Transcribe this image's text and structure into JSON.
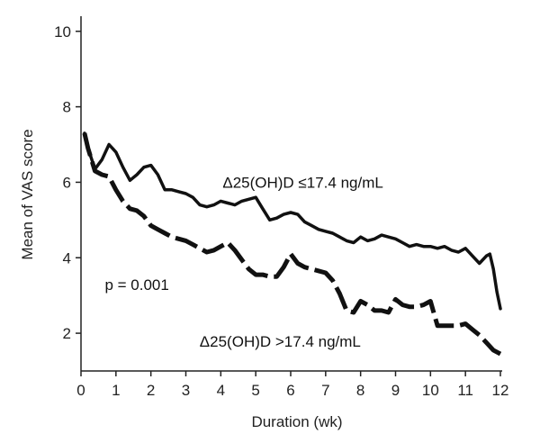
{
  "chart_data": {
    "type": "line",
    "title": "",
    "xlabel": "Duration (wk)",
    "ylabel": "Mean of VAS score",
    "xlim": [
      0,
      12
    ],
    "ylim": [
      1,
      10.4
    ],
    "x_ticks": [
      0,
      1,
      2,
      3,
      4,
      5,
      6,
      7,
      8,
      9,
      10,
      11,
      12
    ],
    "y_ticks": [
      2,
      4,
      6,
      8,
      10
    ],
    "grid": false,
    "colors": {
      "axis": "#222222",
      "line": "#111111"
    },
    "series": [
      {
        "name": "Δ25(OH)D ≤17.4 ng/mL",
        "style": "solid",
        "points": [
          [
            0.1,
            7.3
          ],
          [
            0.2,
            6.9
          ],
          [
            0.4,
            6.35
          ],
          [
            0.6,
            6.6
          ],
          [
            0.8,
            7.0
          ],
          [
            1.0,
            6.8
          ],
          [
            1.2,
            6.4
          ],
          [
            1.4,
            6.05
          ],
          [
            1.6,
            6.2
          ],
          [
            1.8,
            6.4
          ],
          [
            2.0,
            6.45
          ],
          [
            2.2,
            6.2
          ],
          [
            2.4,
            5.8
          ],
          [
            2.6,
            5.8
          ],
          [
            2.8,
            5.75
          ],
          [
            3.0,
            5.7
          ],
          [
            3.2,
            5.6
          ],
          [
            3.4,
            5.4
          ],
          [
            3.6,
            5.35
          ],
          [
            3.8,
            5.4
          ],
          [
            4.0,
            5.5
          ],
          [
            4.2,
            5.45
          ],
          [
            4.4,
            5.4
          ],
          [
            4.6,
            5.5
          ],
          [
            4.8,
            5.55
          ],
          [
            5.0,
            5.6
          ],
          [
            5.2,
            5.3
          ],
          [
            5.4,
            5.0
          ],
          [
            5.6,
            5.05
          ],
          [
            5.8,
            5.15
          ],
          [
            6.0,
            5.2
          ],
          [
            6.2,
            5.15
          ],
          [
            6.4,
            4.95
          ],
          [
            6.6,
            4.85
          ],
          [
            6.8,
            4.75
          ],
          [
            7.0,
            4.7
          ],
          [
            7.2,
            4.65
          ],
          [
            7.4,
            4.55
          ],
          [
            7.6,
            4.45
          ],
          [
            7.8,
            4.4
          ],
          [
            8.0,
            4.55
          ],
          [
            8.2,
            4.45
          ],
          [
            8.4,
            4.5
          ],
          [
            8.6,
            4.6
          ],
          [
            8.8,
            4.55
          ],
          [
            9.0,
            4.5
          ],
          [
            9.2,
            4.4
          ],
          [
            9.4,
            4.3
          ],
          [
            9.6,
            4.35
          ],
          [
            9.8,
            4.3
          ],
          [
            10.0,
            4.3
          ],
          [
            10.2,
            4.25
          ],
          [
            10.4,
            4.3
          ],
          [
            10.6,
            4.2
          ],
          [
            10.8,
            4.15
          ],
          [
            11.0,
            4.25
          ],
          [
            11.2,
            4.05
          ],
          [
            11.4,
            3.85
          ],
          [
            11.6,
            4.05
          ],
          [
            11.7,
            4.1
          ],
          [
            11.8,
            3.7
          ],
          [
            11.9,
            3.1
          ],
          [
            12.0,
            2.65
          ]
        ]
      },
      {
        "name": "Δ25(OH)D >17.4 ng/mL",
        "style": "dashed",
        "points": [
          [
            0.1,
            7.3
          ],
          [
            0.2,
            6.9
          ],
          [
            0.4,
            6.3
          ],
          [
            0.6,
            6.2
          ],
          [
            0.8,
            6.15
          ],
          [
            1.0,
            5.8
          ],
          [
            1.2,
            5.5
          ],
          [
            1.4,
            5.3
          ],
          [
            1.6,
            5.25
          ],
          [
            1.8,
            5.1
          ],
          [
            2.0,
            4.85
          ],
          [
            2.2,
            4.75
          ],
          [
            2.4,
            4.65
          ],
          [
            2.6,
            4.55
          ],
          [
            2.8,
            4.5
          ],
          [
            3.0,
            4.45
          ],
          [
            3.2,
            4.35
          ],
          [
            3.4,
            4.25
          ],
          [
            3.6,
            4.15
          ],
          [
            3.8,
            4.2
          ],
          [
            4.0,
            4.3
          ],
          [
            4.2,
            4.4
          ],
          [
            4.4,
            4.2
          ],
          [
            4.6,
            3.95
          ],
          [
            4.8,
            3.7
          ],
          [
            5.0,
            3.55
          ],
          [
            5.2,
            3.55
          ],
          [
            5.4,
            3.5
          ],
          [
            5.6,
            3.5
          ],
          [
            5.8,
            3.75
          ],
          [
            6.0,
            4.1
          ],
          [
            6.2,
            3.85
          ],
          [
            6.4,
            3.75
          ],
          [
            6.6,
            3.7
          ],
          [
            6.8,
            3.65
          ],
          [
            7.0,
            3.6
          ],
          [
            7.2,
            3.4
          ],
          [
            7.4,
            3.05
          ],
          [
            7.6,
            2.6
          ],
          [
            7.8,
            2.55
          ],
          [
            8.0,
            2.85
          ],
          [
            8.2,
            2.75
          ],
          [
            8.4,
            2.6
          ],
          [
            8.6,
            2.6
          ],
          [
            8.8,
            2.55
          ],
          [
            9.0,
            2.9
          ],
          [
            9.2,
            2.75
          ],
          [
            9.4,
            2.7
          ],
          [
            9.6,
            2.7
          ],
          [
            9.8,
            2.75
          ],
          [
            10.0,
            2.85
          ],
          [
            10.2,
            2.2
          ],
          [
            10.4,
            2.2
          ],
          [
            10.6,
            2.2
          ],
          [
            10.8,
            2.2
          ],
          [
            11.0,
            2.25
          ],
          [
            11.2,
            2.1
          ],
          [
            11.4,
            1.95
          ],
          [
            11.6,
            1.75
          ],
          [
            11.8,
            1.55
          ],
          [
            12.0,
            1.45
          ]
        ]
      }
    ],
    "annotations": [
      {
        "text": "Δ25(OH)D ≤17.4 ng/mL",
        "x": 6.35,
        "y": 5.85
      },
      {
        "text": "p = 0.001",
        "x": 1.6,
        "y": 3.15
      },
      {
        "text": "Δ25(OH)D >17.4 ng/mL",
        "x": 5.7,
        "y": 1.65
      }
    ]
  }
}
